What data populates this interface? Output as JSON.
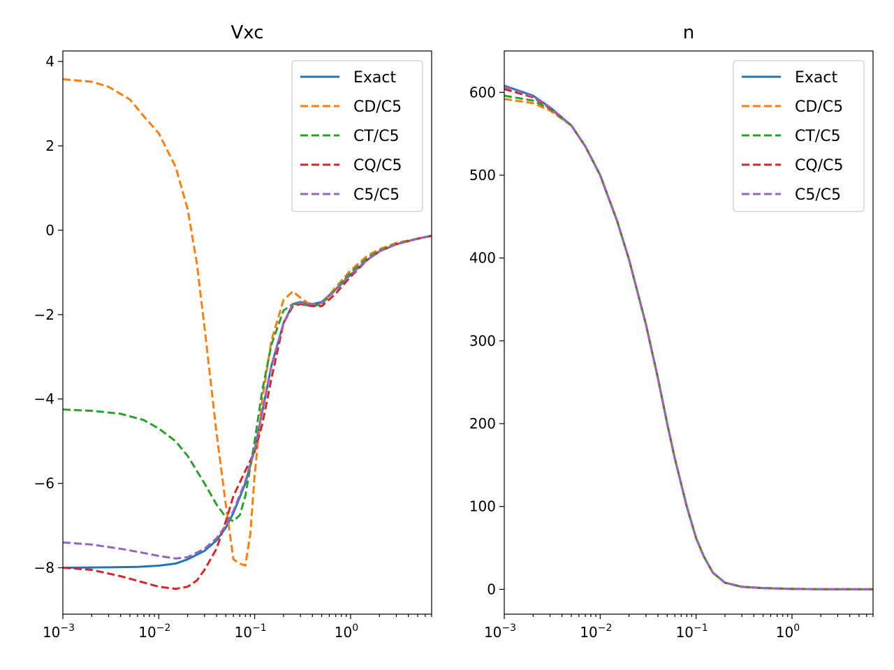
{
  "chart_data": [
    {
      "type": "line",
      "title": "Vxc",
      "xscale": "log",
      "xlim": [
        0.001,
        7
      ],
      "ylim": [
        -9.1,
        4.25
      ],
      "x_ticks": [
        {
          "value": 0.001,
          "base": "10",
          "exp": "−3"
        },
        {
          "value": 0.01,
          "base": "10",
          "exp": "−2"
        },
        {
          "value": 0.1,
          "base": "10",
          "exp": "−1"
        },
        {
          "value": 1,
          "base": "10",
          "exp": "0"
        }
      ],
      "y_ticks": [
        {
          "value": 4,
          "label": "4"
        },
        {
          "value": 2,
          "label": "2"
        },
        {
          "value": 0,
          "label": "0"
        },
        {
          "value": -2,
          "label": "−2"
        },
        {
          "value": -4,
          "label": "−4"
        },
        {
          "value": -6,
          "label": "−6"
        },
        {
          "value": -8,
          "label": "−8"
        }
      ],
      "legend_position": "top-right",
      "series": [
        {
          "name": "Exact",
          "color": "#1f77b4",
          "style": "solid",
          "x": [
            0.001,
            0.003,
            0.006,
            0.01,
            0.015,
            0.02,
            0.03,
            0.04,
            0.05,
            0.06,
            0.08,
            0.1,
            0.12,
            0.15,
            0.2,
            0.25,
            0.3,
            0.4,
            0.5,
            0.7,
            1.0,
            1.5,
            2.0,
            3.0,
            5.0,
            7.0
          ],
          "y": [
            -8.0,
            -7.99,
            -7.98,
            -7.95,
            -7.9,
            -7.8,
            -7.6,
            -7.35,
            -7.05,
            -6.7,
            -6.0,
            -5.2,
            -4.3,
            -3.2,
            -2.2,
            -1.75,
            -1.7,
            -1.75,
            -1.7,
            -1.4,
            -1.05,
            -0.7,
            -0.5,
            -0.33,
            -0.2,
            -0.13
          ]
        },
        {
          "name": "CD/C5",
          "color": "#ff7f0e",
          "style": "dashed",
          "x": [
            0.001,
            0.002,
            0.003,
            0.005,
            0.007,
            0.01,
            0.015,
            0.02,
            0.025,
            0.03,
            0.04,
            0.05,
            0.06,
            0.07,
            0.08,
            0.09,
            0.1,
            0.12,
            0.15,
            0.2,
            0.25,
            0.3,
            0.4,
            0.5,
            0.7,
            1.0,
            1.5,
            2.0,
            3.0,
            5.0,
            7.0
          ],
          "y": [
            3.58,
            3.52,
            3.4,
            3.1,
            2.7,
            2.3,
            1.5,
            0.5,
            -0.8,
            -2.3,
            -4.8,
            -6.5,
            -7.8,
            -7.9,
            -7.95,
            -7.2,
            -5.8,
            -4.0,
            -2.6,
            -1.65,
            -1.45,
            -1.6,
            -1.8,
            -1.75,
            -1.35,
            -0.95,
            -0.6,
            -0.45,
            -0.3,
            -0.2,
            -0.13
          ]
        },
        {
          "name": "CT/C5",
          "color": "#2ca02c",
          "style": "dashed",
          "x": [
            0.001,
            0.002,
            0.004,
            0.007,
            0.01,
            0.015,
            0.02,
            0.03,
            0.04,
            0.05,
            0.06,
            0.07,
            0.08,
            0.1,
            0.12,
            0.15,
            0.2,
            0.25,
            0.3,
            0.4,
            0.5,
            0.7,
            1.0,
            1.5,
            2.0,
            3.0,
            5.0,
            7.0
          ],
          "y": [
            -4.25,
            -4.28,
            -4.35,
            -4.5,
            -4.7,
            -5.0,
            -5.35,
            -6.0,
            -6.5,
            -6.8,
            -6.9,
            -6.75,
            -6.3,
            -5.0,
            -3.8,
            -2.7,
            -1.9,
            -1.75,
            -1.75,
            -1.8,
            -1.75,
            -1.4,
            -1.0,
            -0.65,
            -0.48,
            -0.32,
            -0.2,
            -0.13
          ]
        },
        {
          "name": "CQ/C5",
          "color": "#d62728",
          "style": "dashed",
          "x": [
            0.001,
            0.002,
            0.004,
            0.007,
            0.01,
            0.015,
            0.02,
            0.025,
            0.03,
            0.04,
            0.05,
            0.06,
            0.08,
            0.1,
            0.12,
            0.15,
            0.2,
            0.25,
            0.3,
            0.4,
            0.5,
            0.7,
            1.0,
            1.5,
            2.0,
            3.0,
            5.0,
            7.0
          ],
          "y": [
            -8.0,
            -8.05,
            -8.2,
            -8.35,
            -8.45,
            -8.5,
            -8.45,
            -8.3,
            -8.05,
            -7.55,
            -6.9,
            -6.3,
            -5.7,
            -5.25,
            -4.6,
            -3.5,
            -2.2,
            -1.8,
            -1.75,
            -1.8,
            -1.8,
            -1.5,
            -1.1,
            -0.7,
            -0.5,
            -0.33,
            -0.2,
            -0.13
          ]
        },
        {
          "name": "C5/C5",
          "color": "#9467bd",
          "style": "dashed",
          "x": [
            0.001,
            0.002,
            0.004,
            0.007,
            0.01,
            0.015,
            0.02,
            0.03,
            0.04,
            0.05,
            0.06,
            0.08,
            0.1,
            0.12,
            0.15,
            0.2,
            0.25,
            0.3,
            0.4,
            0.5,
            0.7,
            1.0,
            1.5,
            2.0,
            3.0,
            5.0,
            7.0
          ],
          "y": [
            -7.4,
            -7.45,
            -7.55,
            -7.65,
            -7.72,
            -7.78,
            -7.75,
            -7.55,
            -7.3,
            -7.0,
            -6.65,
            -5.95,
            -5.2,
            -4.3,
            -3.2,
            -2.2,
            -1.75,
            -1.72,
            -1.75,
            -1.72,
            -1.42,
            -1.05,
            -0.7,
            -0.5,
            -0.33,
            -0.2,
            -0.13
          ]
        }
      ]
    },
    {
      "type": "line",
      "title": "n",
      "xscale": "log",
      "xlim": [
        0.001,
        7
      ],
      "ylim": [
        -30,
        650
      ],
      "x_ticks": [
        {
          "value": 0.001,
          "base": "10",
          "exp": "−3"
        },
        {
          "value": 0.01,
          "base": "10",
          "exp": "−2"
        },
        {
          "value": 0.1,
          "base": "10",
          "exp": "−1"
        },
        {
          "value": 1,
          "base": "10",
          "exp": "0"
        }
      ],
      "y_ticks": [
        {
          "value": 600,
          "label": "600"
        },
        {
          "value": 500,
          "label": "500"
        },
        {
          "value": 400,
          "label": "400"
        },
        {
          "value": 300,
          "label": "300"
        },
        {
          "value": 200,
          "label": "200"
        },
        {
          "value": 100,
          "label": "100"
        },
        {
          "value": 0,
          "label": "0"
        }
      ],
      "legend_position": "top-right",
      "series": [
        {
          "name": "Exact",
          "color": "#1f77b4",
          "style": "solid",
          "x": [
            0.001,
            0.002,
            0.003,
            0.005,
            0.007,
            0.01,
            0.015,
            0.02,
            0.03,
            0.04,
            0.05,
            0.06,
            0.08,
            0.1,
            0.12,
            0.15,
            0.2,
            0.3,
            0.5,
            1.0,
            2.0,
            4.0,
            7.0
          ],
          "y": [
            608,
            596,
            582,
            560,
            535,
            500,
            445,
            398,
            320,
            255,
            200,
            158,
            100,
            62,
            40,
            20,
            8,
            3,
            1.5,
            0.5,
            0.2,
            0.1,
            0.0
          ]
        },
        {
          "name": "CD/C5",
          "color": "#ff7f0e",
          "style": "dashed",
          "x": [
            0.001,
            0.002,
            0.003,
            0.005,
            0.007,
            0.01,
            0.015,
            0.02,
            0.03,
            0.04,
            0.05,
            0.06,
            0.08,
            0.1,
            0.12,
            0.15,
            0.2,
            0.3,
            0.5,
            1.0,
            2.0,
            4.0,
            7.0
          ],
          "y": [
            592,
            587,
            578,
            560,
            535,
            500,
            445,
            398,
            320,
            255,
            200,
            158,
            100,
            62,
            40,
            20,
            8,
            3,
            1.5,
            0.5,
            0.2,
            0.1,
            0.0
          ]
        },
        {
          "name": "CT/C5",
          "color": "#2ca02c",
          "style": "dashed",
          "x": [
            0.001,
            0.002,
            0.003,
            0.005,
            0.007,
            0.01,
            0.015,
            0.02,
            0.03,
            0.04,
            0.05,
            0.06,
            0.08,
            0.1,
            0.12,
            0.15,
            0.2,
            0.3,
            0.5,
            1.0,
            2.0,
            4.0,
            7.0
          ],
          "y": [
            596,
            590,
            580,
            560,
            535,
            500,
            445,
            398,
            320,
            255,
            200,
            158,
            100,
            62,
            40,
            20,
            8,
            3,
            1.5,
            0.5,
            0.2,
            0.1,
            0.0
          ]
        },
        {
          "name": "CQ/C5",
          "color": "#d62728",
          "style": "dashed",
          "x": [
            0.001,
            0.002,
            0.003,
            0.005,
            0.007,
            0.01,
            0.015,
            0.02,
            0.03,
            0.04,
            0.05,
            0.06,
            0.08,
            0.1,
            0.12,
            0.15,
            0.2,
            0.3,
            0.5,
            1.0,
            2.0,
            4.0,
            7.0
          ],
          "y": [
            604,
            594,
            581,
            560,
            535,
            500,
            445,
            398,
            320,
            255,
            200,
            158,
            100,
            62,
            40,
            20,
            8,
            3,
            1.5,
            0.5,
            0.2,
            0.1,
            0.0
          ]
        },
        {
          "name": "C5/C5",
          "color": "#9467bd",
          "style": "dashed",
          "x": [
            0.001,
            0.002,
            0.003,
            0.005,
            0.007,
            0.01,
            0.015,
            0.02,
            0.03,
            0.04,
            0.05,
            0.06,
            0.08,
            0.1,
            0.12,
            0.15,
            0.2,
            0.3,
            0.5,
            1.0,
            2.0,
            4.0,
            7.0
          ],
          "y": [
            607,
            595,
            582,
            560,
            535,
            500,
            445,
            398,
            320,
            255,
            200,
            158,
            100,
            62,
            40,
            20,
            8,
            3,
            1.5,
            0.5,
            0.2,
            0.1,
            0.0
          ]
        }
      ]
    }
  ]
}
